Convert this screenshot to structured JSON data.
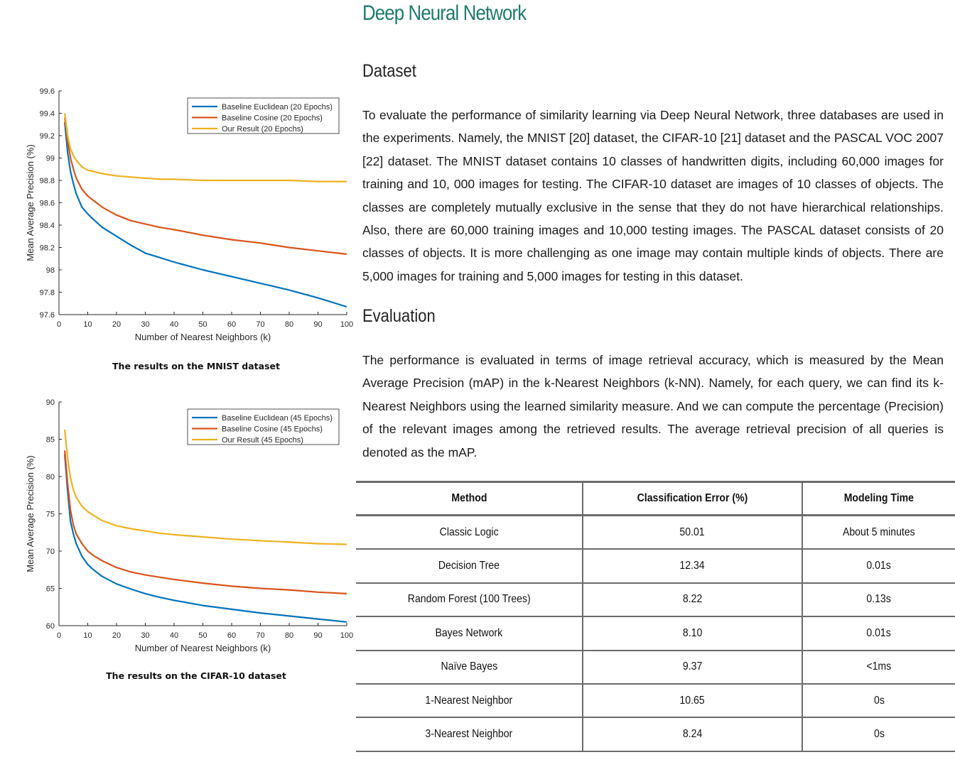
{
  "page_title": "Deep Neural Network",
  "sections": {
    "dataset": {
      "heading": "Dataset",
      "text": "To evaluate the performance of similarity learning via Deep Neural Network, three databases are used in the experiments. Namely, the MNIST [20] dataset, the CIFAR-10 [21] dataset and the PASCAL VOC 2007 [22] dataset. The MNIST dataset contains 10 classes of handwritten digits, including 60,000 images for training and 10, 000 images for testing. The CIFAR-10 dataset are images of 10 classes of objects. The classes are completely mutually exclusive in the sense that they do not have hierarchical relationships. Also, there are 60,000 training images and 10,000 testing images. The PASCAL dataset consists of 20 classes of objects. It is more challenging as one image may contain multiple kinds of objects. There are 5,000 images for training and 5,000 images for testing in this dataset."
    },
    "evaluation": {
      "heading": "Evaluation",
      "text": "The performance is evaluated in terms of image retrieval accuracy, which is measured by the Mean Average Precision (mAP) in the k-Nearest Neighbors (k-NN). Namely, for each query, we can find its k-Nearest Neighbors using the learned similarity measure. And we can compute the percentage (Precision) of the relevant images among the retrieved results. The average retrieval precision of all queries is denoted as the mAP."
    }
  },
  "table": {
    "headers": [
      "Method",
      "Classification Error (%)",
      "Modeling Time"
    ],
    "rows": [
      [
        "Classic Logic",
        "50.01",
        "About 5 minutes"
      ],
      [
        "Decision Tree",
        "12.34",
        "0.01s"
      ],
      [
        "Random Forest (100 Trees)",
        "8.22",
        "0.13s"
      ],
      [
        "Bayes Network",
        "8.10",
        "0.01s"
      ],
      [
        "Naïve Bayes",
        "9.37",
        "<1ms"
      ],
      [
        "1-Nearest Neighbor",
        "10.65",
        "0s"
      ],
      [
        "3-Nearest Neighbor",
        "8.24",
        "0s"
      ]
    ]
  },
  "chart_data": [
    {
      "type": "line",
      "caption": "The results on the MNIST dataset",
      "xlabel": "Number of Nearest Neighbors (k)",
      "ylabel": "Mean Average Precision (%)",
      "xlim": [
        0,
        100
      ],
      "ylim": [
        97.6,
        99.6
      ],
      "xticks": [
        0,
        10,
        20,
        30,
        40,
        50,
        60,
        70,
        80,
        90,
        100
      ],
      "yticks": [
        97.6,
        97.8,
        98,
        98.2,
        98.4,
        98.6,
        98.8,
        99,
        99.2,
        99.4,
        99.6
      ],
      "ytick_labels": [
        "97.6",
        "97.8",
        "98",
        "98.2",
        "98.4",
        "98.6",
        "98.8",
        "99",
        "99.2",
        "99.4",
        "99.6"
      ],
      "grid": false,
      "legend_position": "top-right",
      "series": [
        {
          "name": "Baseline Euclidean (20 Epochs)",
          "color": "#0072bd",
          "x": [
            2,
            3,
            4,
            5,
            6,
            8,
            10,
            12,
            15,
            20,
            25,
            30,
            35,
            40,
            50,
            60,
            70,
            80,
            90,
            100
          ],
          "y": [
            99.32,
            99.05,
            98.88,
            98.77,
            98.68,
            98.56,
            98.5,
            98.45,
            98.38,
            98.3,
            98.22,
            98.15,
            98.11,
            98.07,
            98.0,
            97.94,
            97.88,
            97.82,
            97.75,
            97.67
          ]
        },
        {
          "name": "Baseline Cosine (20 Epochs)",
          "color": "#d95319",
          "x": [
            2,
            3,
            4,
            5,
            6,
            8,
            10,
            12,
            15,
            20,
            25,
            30,
            35,
            40,
            50,
            60,
            70,
            80,
            90,
            100
          ],
          "y": [
            99.36,
            99.15,
            99.0,
            98.9,
            98.82,
            98.72,
            98.66,
            98.62,
            98.56,
            98.49,
            98.44,
            98.41,
            98.38,
            98.36,
            98.31,
            98.27,
            98.24,
            98.2,
            98.17,
            98.14
          ]
        },
        {
          "name": "Our Result (20 Epochs)",
          "color": "#edb120",
          "x": [
            2,
            3,
            4,
            5,
            6,
            8,
            10,
            12,
            15,
            20,
            25,
            30,
            35,
            40,
            50,
            60,
            70,
            80,
            90,
            100
          ],
          "y": [
            99.4,
            99.2,
            99.08,
            99.02,
            98.98,
            98.92,
            98.89,
            98.88,
            98.86,
            98.84,
            98.83,
            98.82,
            98.81,
            98.81,
            98.8,
            98.8,
            98.8,
            98.8,
            98.79,
            98.79
          ]
        }
      ]
    },
    {
      "type": "line",
      "caption": "The results on the CIFAR-10 dataset",
      "xlabel": "Number of Nearest Neighbors (k)",
      "ylabel": "Mean Average Precision (%)",
      "xlim": [
        0,
        100
      ],
      "ylim": [
        60,
        90
      ],
      "xticks": [
        0,
        10,
        20,
        30,
        40,
        50,
        60,
        70,
        80,
        90,
        100
      ],
      "yticks": [
        60,
        65,
        70,
        75,
        80,
        85,
        90
      ],
      "ytick_labels": [
        "60",
        "65",
        "70",
        "75",
        "80",
        "85",
        "90"
      ],
      "grid": false,
      "legend_position": "top-right",
      "series": [
        {
          "name": "Baseline Euclidean (45 Epochs)",
          "color": "#0072bd",
          "x": [
            2,
            3,
            4,
            5,
            6,
            8,
            10,
            12,
            15,
            20,
            25,
            30,
            35,
            40,
            50,
            60,
            70,
            80,
            90,
            100
          ],
          "y": [
            83.0,
            78.0,
            74.0,
            72.3,
            71.0,
            69.3,
            68.2,
            67.5,
            66.6,
            65.6,
            64.9,
            64.3,
            63.8,
            63.4,
            62.7,
            62.2,
            61.7,
            61.3,
            60.9,
            60.5
          ]
        },
        {
          "name": "Baseline Cosine (45 Epochs)",
          "color": "#d95319",
          "x": [
            2,
            3,
            4,
            5,
            6,
            8,
            10,
            12,
            15,
            20,
            25,
            30,
            35,
            40,
            50,
            60,
            70,
            80,
            90,
            100
          ],
          "y": [
            83.5,
            79.0,
            75.5,
            73.5,
            72.3,
            71.0,
            70.0,
            69.4,
            68.7,
            67.8,
            67.2,
            66.8,
            66.5,
            66.2,
            65.7,
            65.3,
            65.0,
            64.8,
            64.5,
            64.3
          ]
        },
        {
          "name": "Our Result (45 Epochs)",
          "color": "#edb120",
          "x": [
            2,
            3,
            4,
            5,
            6,
            8,
            10,
            12,
            15,
            20,
            25,
            30,
            35,
            40,
            50,
            60,
            70,
            80,
            90,
            100
          ],
          "y": [
            86.3,
            82.5,
            79.8,
            78.2,
            77.2,
            76.0,
            75.3,
            74.8,
            74.1,
            73.4,
            73.0,
            72.7,
            72.4,
            72.2,
            71.9,
            71.6,
            71.4,
            71.2,
            71.0,
            70.9
          ]
        }
      ]
    }
  ]
}
